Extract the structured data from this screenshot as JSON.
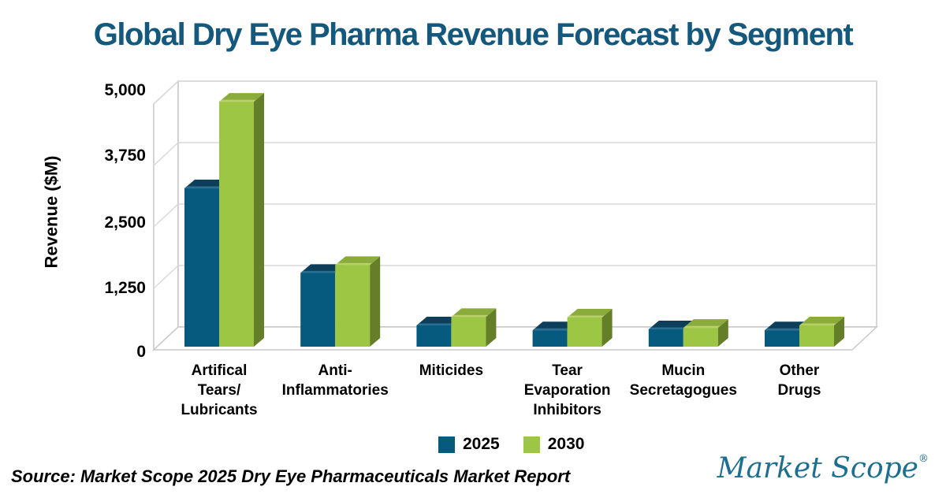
{
  "title": "Global Dry Eye Pharma Revenue Forecast by Segment",
  "source_note": "Source: Market Scope 2025 Dry Eye Pharmaceuticals Market Report",
  "logo": {
    "text": "Market Scope",
    "mark": "®"
  },
  "colors": {
    "title_text": "#14597d",
    "axis_text": "#000000",
    "gridline": "#d9d9d9",
    "wall_edge": "#c8c8c8",
    "wall_fill": "#ffffff",
    "logo_text": "#1d6f91",
    "s2025_front": "#065a7e",
    "s2025_top": "#0e3f5a",
    "s2025_top_highlight": "#2a6f93",
    "s2030_front": "#9cc643",
    "s2030_top": "#8cab3d",
    "s2030_top_highlight": "#b7d168",
    "s2030_side": "#647f28"
  },
  "chart_data": {
    "type": "bar",
    "style": "3d-clustered-column",
    "title": "Global Dry Eye Pharma Revenue Forecast by Segment",
    "xlabel": "",
    "ylabel": "Revenue ($M)",
    "ylim": [
      0,
      5000
    ],
    "yticks": [
      0,
      1250,
      2500,
      3750,
      5000
    ],
    "ytick_labels": [
      "0",
      "1,250",
      "2,500",
      "3,750",
      "5,000"
    ],
    "grid": true,
    "legend_position": "bottom",
    "categories": [
      "Artifical Tears/Lubricants",
      "Anti-Inflammatories",
      "Miticides",
      "Tear Evaporation Inhibitors",
      "Mucin Secretagogues",
      "Other Drugs"
    ],
    "category_display_lines": [
      [
        "Artifical",
        "Tears/",
        "Lubricants"
      ],
      [
        "Anti-",
        "Inflammatories"
      ],
      [
        "Miticides"
      ],
      [
        "Tear",
        "Evaporation",
        "Inhibitors"
      ],
      [
        "Mucin",
        "Secretagogues"
      ],
      [
        "Other",
        "Drugs"
      ]
    ],
    "series": [
      {
        "name": "2025",
        "color": "#065a7e",
        "values": [
          3200,
          1490,
          430,
          330,
          350,
          330
        ]
      },
      {
        "name": "2030",
        "color": "#9cc643",
        "values": [
          4950,
          1650,
          600,
          590,
          380,
          430
        ]
      }
    ]
  }
}
